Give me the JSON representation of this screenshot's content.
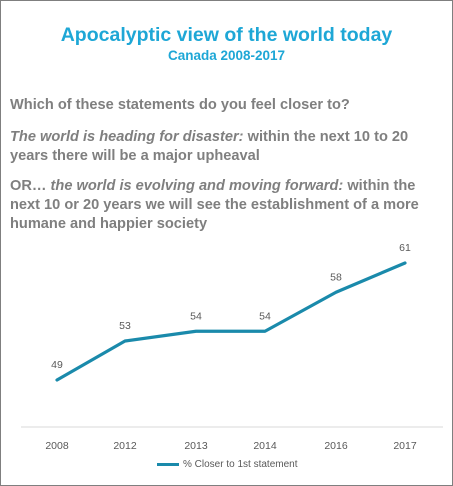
{
  "title": "Apocalyptic view of the world today",
  "subtitle": "Canada 2008-2017",
  "question": "Which of these statements do you feel closer to?",
  "statement1": {
    "emph": "The world is heading for disaster:",
    "rest": " within the next 10 to 20 years there will be a major upheaval"
  },
  "statement2": {
    "prefix": "OR… ",
    "emph": "the world is evolving and moving forward:",
    "rest": " within the next 10 or 20 years we will see the establishment of a more humane and happier society"
  },
  "chart_data": {
    "type": "line",
    "categories": [
      "2008",
      "2012",
      "2013",
      "2014",
      "2016",
      "2017"
    ],
    "series": [
      {
        "name": "% Closer to 1st statement",
        "values": [
          49,
          53,
          54,
          54,
          58,
          61
        ],
        "color": "#1a8aab"
      }
    ],
    "ylim": [
      38,
      66
    ],
    "grid": false,
    "legend": "bottom"
  }
}
